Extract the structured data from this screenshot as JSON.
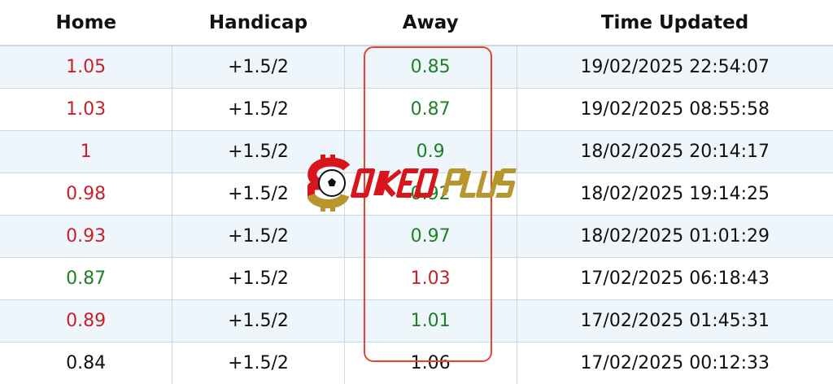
{
  "columns": [
    "Home",
    "Handicap",
    "Away",
    "Time Updated"
  ],
  "rows": [
    {
      "home": "1.05",
      "home_color": "red",
      "handicap": "+1.5/2",
      "away": "0.85",
      "away_color": "green",
      "time": "19/02/2025 22:54:07"
    },
    {
      "home": "1.03",
      "home_color": "red",
      "handicap": "+1.5/2",
      "away": "0.87",
      "away_color": "green",
      "time": "19/02/2025 08:55:58"
    },
    {
      "home": "1",
      "home_color": "red",
      "handicap": "+1.5/2",
      "away": "0.9",
      "away_color": "green",
      "time": "18/02/2025 20:14:17"
    },
    {
      "home": "0.98",
      "home_color": "red",
      "handicap": "+1.5/2",
      "away": "0.92",
      "away_color": "green",
      "time": "18/02/2025 19:14:25"
    },
    {
      "home": "0.93",
      "home_color": "red",
      "handicap": "+1.5/2",
      "away": "0.97",
      "away_color": "green",
      "time": "18/02/2025 01:01:29"
    },
    {
      "home": "0.87",
      "home_color": "green",
      "handicap": "+1.5/2",
      "away": "1.03",
      "away_color": "red",
      "time": "17/02/2025 06:18:43"
    },
    {
      "home": "0.89",
      "home_color": "red",
      "handicap": "+1.5/2",
      "away": "1.01",
      "away_color": "green",
      "time": "17/02/2025 01:45:31"
    },
    {
      "home": "0.84",
      "home_color": "black",
      "handicap": "+1.5/2",
      "away": "1.06",
      "away_color": "black",
      "time": "17/02/2025 00:12:33"
    }
  ],
  "colors": {
    "red": "#c8202a",
    "green": "#1f7f25",
    "highlight": "#e8432f",
    "row_alt": "#eef6fc"
  },
  "watermark": {
    "text": "SOIKEOPLUS"
  }
}
